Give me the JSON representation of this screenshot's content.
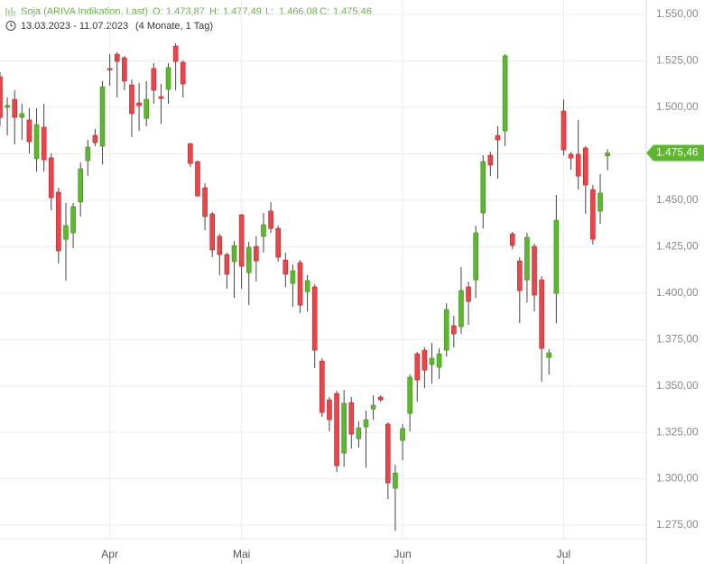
{
  "chart_data": {
    "type": "candlestick",
    "title": "Soja (ARIVA Indikation, Last)",
    "ohlc_labels": [
      "O:",
      "H:",
      "L:",
      "C:"
    ],
    "ohlc_texts": [
      "1.473,87",
      "1.477,49",
      "1.466,08",
      "1.475,46"
    ],
    "date_range": "13.03.2023 - 11.07.2023",
    "period": "(4 Monate, 1 Tag)",
    "last_value_label": "1.475,46",
    "up_color": "#5db830",
    "down_color": "#e8464b",
    "categories": [
      null,
      null,
      null,
      null,
      null,
      null,
      null,
      null,
      null,
      null,
      null,
      null,
      null,
      null,
      null,
      "Apr",
      null,
      null,
      null,
      null,
      null,
      null,
      null,
      null,
      null,
      null,
      null,
      null,
      null,
      null,
      null,
      null,
      null,
      "Mai",
      null,
      null,
      null,
      null,
      null,
      null,
      null,
      null,
      null,
      null,
      null,
      null,
      null,
      null,
      null,
      null,
      null,
      null,
      null,
      null,
      null,
      "Jun",
      null,
      null,
      null,
      null,
      null,
      null,
      null,
      null,
      null,
      null,
      null,
      null,
      null,
      null,
      null,
      null,
      null,
      null,
      null,
      null,
      null,
      "Jul",
      null,
      null,
      null,
      null,
      null,
      null
    ],
    "open": [
      1516.5,
      1500,
      1504.3,
      1494.6,
      1493.2,
      1472.3,
      1489.3,
      1472.8,
      1454.3,
      1429,
      1432.4,
      1449,
      1471.3,
      1484.9,
      1479.1,
      1520.9,
      1528.6,
      1526.7,
      1512.1,
      1502.4,
      1494.1,
      1520.9,
      1505.8,
      1509.7,
      1533,
      1524.3,
      1480.5,
      1470.8,
      1456.7,
      1442.6,
      1430.5,
      1420.7,
      1416.9,
      1442.1,
      1411,
      1425.1,
      1430.5,
      1444.1,
      1434.8,
      1417.8,
      1405.2,
      1416.4,
      1400.8,
      1403.3,
      1363.4,
      1342.5,
      1345.9,
      1313.8,
      1341,
      1321.6,
      1327.9,
      1337.6,
      1344,
      1329.4,
      1294.9,
      1320.6,
      1335.2,
      1367.3,
      1369.2,
      1361.5,
      1360,
      1369.2,
      1382.4,
      1381.9,
      1403.3,
      1407.1,
      1443.1,
      1474.2,
      1484.9,
      1487.3,
      1431.9,
      1417.3,
      1407.1,
      1425.1,
      1407.1,
      1365.3,
      1399.8,
      1498,
      1474.7,
      1474.7,
      1478.1,
      1455.7,
      1444.1,
      1473.87
    ],
    "high": [
      1519,
      1505.3,
      1509.2,
      1501.9,
      1499.5,
      1499.5,
      1501.9,
      1475.2,
      1456.7,
      1448.5,
      1448.5,
      1470.3,
      1482.5,
      1488.3,
      1514.1,
      1528.6,
      1529.6,
      1527.7,
      1515,
      1513.1,
      1514.1,
      1523.8,
      1512.6,
      1523.8,
      1534.5,
      1525.2,
      1480.5,
      1471.3,
      1459.1,
      1443.6,
      1431.9,
      1421.7,
      1428,
      1442.6,
      1427.6,
      1430.5,
      1443.1,
      1449,
      1436.3,
      1421.7,
      1415.4,
      1417.8,
      1409.6,
      1404.7,
      1364.9,
      1344,
      1347.4,
      1347.9,
      1344,
      1330.8,
      1336.7,
      1344.9,
      1344.9,
      1330.4,
      1307.5,
      1329.4,
      1356.1,
      1368.3,
      1370.7,
      1373.1,
      1370.2,
      1394.5,
      1387.7,
      1414,
      1406.2,
      1436.3,
      1474.2,
      1476.1,
      1489.8,
      1528.6,
      1432.9,
      1419.3,
      1432.4,
      1426.6,
      1409.1,
      1369.7,
      1452.8,
      1504.3,
      1476.1,
      1493.2,
      1479.1,
      1458.2,
      1464,
      1477.49
    ],
    "low": [
      1490,
      1484.9,
      1480,
      1482.5,
      1475.2,
      1465.4,
      1465.4,
      1444.6,
      1415.9,
      1406.7,
      1424.2,
      1441.2,
      1463,
      1479.1,
      1469.3,
      1511.6,
      1505.3,
      1509.2,
      1484,
      1487.3,
      1489.8,
      1501.9,
      1491.2,
      1501.9,
      1509.2,
      1505.3,
      1467.9,
      1451.9,
      1433.9,
      1419.3,
      1409.6,
      1402.3,
      1397.4,
      1402.3,
      1393.5,
      1406.2,
      1421.7,
      1432.4,
      1416.9,
      1403.3,
      1392.6,
      1389.2,
      1390.1,
      1359.5,
      1333.3,
      1325.5,
      1303.6,
      1306.5,
      1316.3,
      1316.7,
      1306.1,
      1331.8,
      1341.5,
      1289,
      1272,
      1310,
      1325.5,
      1341.5,
      1348.8,
      1351.3,
      1353.7,
      1365.8,
      1370.7,
      1378,
      1382.8,
      1397.4,
      1434.8,
      1463,
      1461.6,
      1479.1,
      1423.7,
      1383.8,
      1395,
      1390.1,
      1352.2,
      1356.1,
      1383.8,
      1474.2,
      1466.4,
      1455.7,
      1442.6,
      1426.1,
      1437.3,
      1466.08
    ],
    "close": [
      1494.5,
      1501,
      1494.6,
      1496.6,
      1481.5,
      1490.7,
      1471.8,
      1451.4,
      1422.7,
      1436.3,
      1446.5,
      1466.9,
      1478.6,
      1481,
      1511.1,
      1520.4,
      1524.7,
      1514.1,
      1496.6,
      1500.9,
      1504.3,
      1509.2,
      1504.8,
      1521.4,
      1524.7,
      1512.6,
      1469.8,
      1452.3,
      1441.2,
      1423.2,
      1420.7,
      1410.1,
      1425.6,
      1414.4,
      1424.6,
      1417.3,
      1436.8,
      1434.8,
      1419.3,
      1410.1,
      1412,
      1393.5,
      1406.7,
      1369.2,
      1335.7,
      1331.8,
      1307,
      1340.6,
      1324,
      1327.4,
      1331.8,
      1339.6,
      1342.5,
      1297.8,
      1303.1,
      1327,
      1354.7,
      1353.2,
      1358.5,
      1364.9,
      1367.3,
      1391.1,
      1378,
      1401.3,
      1395.5,
      1432.4,
      1470.8,
      1468.9,
      1482.5,
      1527.7,
      1425.6,
      1401.3,
      1430,
      1398.9,
      1370.2,
      1367.8,
      1439.2,
      1477.1,
      1472.7,
      1463,
      1458.2,
      1429,
      1453.8,
      1475.46
    ],
    "ylim": [
      1267.7,
      1557.8
    ],
    "yticks": [
      {
        "value": 1275,
        "label": "1.275,00"
      },
      {
        "value": 1300,
        "label": "1.300,00"
      },
      {
        "value": 1325,
        "label": "1.325,00"
      },
      {
        "value": 1350,
        "label": "1.350,00"
      },
      {
        "value": 1375,
        "label": "1.375,00"
      },
      {
        "value": 1400,
        "label": "1.400,00"
      },
      {
        "value": 1425,
        "label": "1.425,00"
      },
      {
        "value": 1450,
        "label": "1.450,00"
      },
      {
        "value": 1475,
        "label": "1.475,00"
      },
      {
        "value": 1500,
        "label": "1.500,00"
      },
      {
        "value": 1525,
        "label": "1.525,00"
      },
      {
        "value": 1550,
        "label": "1.550,00"
      }
    ],
    "grid": true
  }
}
